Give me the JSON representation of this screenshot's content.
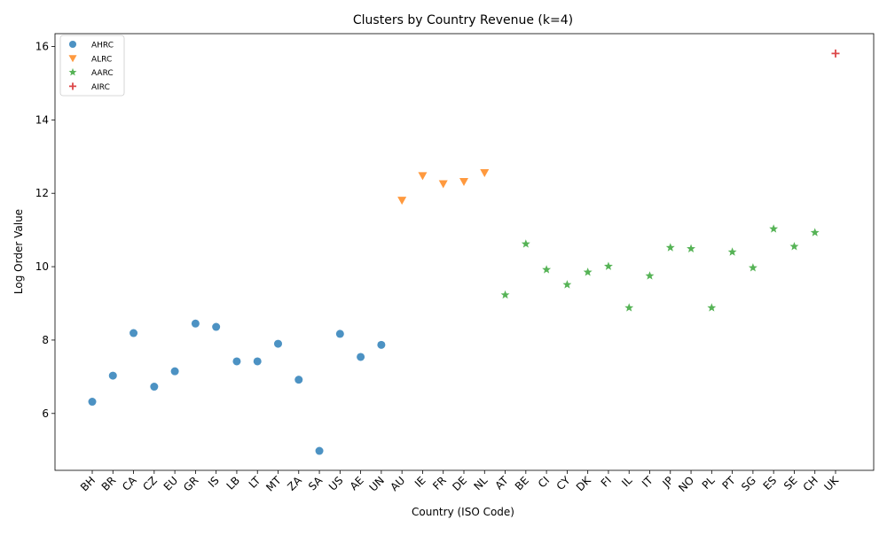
{
  "chart_data": {
    "type": "scatter",
    "title": "Clusters by Country Revenue (k=4)",
    "xlabel": "Country (ISO Code)",
    "ylabel": "Log Order Value",
    "ylim": [
      4.45,
      16.35
    ],
    "yticks": [
      6,
      8,
      10,
      12,
      14,
      16
    ],
    "legend_position": "top-left",
    "grid": false,
    "categories": [
      "BH",
      "BR",
      "CA",
      "CZ",
      "EU",
      "GR",
      "IS",
      "LB",
      "LT",
      "MT",
      "ZA",
      "SA",
      "US",
      "AE",
      "UN",
      "AU",
      "IE",
      "FR",
      "DE",
      "NL",
      "AT",
      "BE",
      "CI",
      "CY",
      "DK",
      "FI",
      "IL",
      "IT",
      "JP",
      "NO",
      "PL",
      "PT",
      "SG",
      "ES",
      "SE",
      "CH",
      "UK"
    ],
    "series": [
      {
        "name": "AHRC",
        "marker": "circle",
        "color": "#1f77b4",
        "points": [
          {
            "x": "BH",
            "y": 6.32
          },
          {
            "x": "BR",
            "y": 7.03
          },
          {
            "x": "CA",
            "y": 8.19
          },
          {
            "x": "CZ",
            "y": 6.73
          },
          {
            "x": "EU",
            "y": 7.15
          },
          {
            "x": "GR",
            "y": 8.45
          },
          {
            "x": "IS",
            "y": 8.36
          },
          {
            "x": "LB",
            "y": 7.42
          },
          {
            "x": "LT",
            "y": 7.42
          },
          {
            "x": "MT",
            "y": 7.9
          },
          {
            "x": "ZA",
            "y": 6.92
          },
          {
            "x": "SA",
            "y": 4.98
          },
          {
            "x": "US",
            "y": 8.17
          },
          {
            "x": "AE",
            "y": 7.54
          },
          {
            "x": "UN",
            "y": 7.87
          }
        ]
      },
      {
        "name": "ALRC",
        "marker": "triangle-down",
        "color": "#ff7f0e",
        "points": [
          {
            "x": "AU",
            "y": 11.81
          },
          {
            "x": "IE",
            "y": 12.48
          },
          {
            "x": "FR",
            "y": 12.26
          },
          {
            "x": "DE",
            "y": 12.32
          },
          {
            "x": "NL",
            "y": 12.56
          }
        ]
      },
      {
        "name": "AARC",
        "marker": "star",
        "color": "#2ca02c",
        "points": [
          {
            "x": "AT",
            "y": 9.23
          },
          {
            "x": "BE",
            "y": 10.62
          },
          {
            "x": "CI",
            "y": 9.92
          },
          {
            "x": "CY",
            "y": 9.51
          },
          {
            "x": "DK",
            "y": 9.85
          },
          {
            "x": "FI",
            "y": 10.01
          },
          {
            "x": "IL",
            "y": 8.88
          },
          {
            "x": "IT",
            "y": 9.75
          },
          {
            "x": "JP",
            "y": 10.52
          },
          {
            "x": "NO",
            "y": 10.49
          },
          {
            "x": "PL",
            "y": 8.88
          },
          {
            "x": "PT",
            "y": 10.4
          },
          {
            "x": "SG",
            "y": 9.97
          },
          {
            "x": "ES",
            "y": 11.03
          },
          {
            "x": "SE",
            "y": 10.55
          },
          {
            "x": "CH",
            "y": 10.93
          }
        ]
      },
      {
        "name": "AIRC",
        "marker": "plus",
        "color": "#d62728",
        "points": [
          {
            "x": "UK",
            "y": 15.81
          }
        ]
      }
    ]
  }
}
